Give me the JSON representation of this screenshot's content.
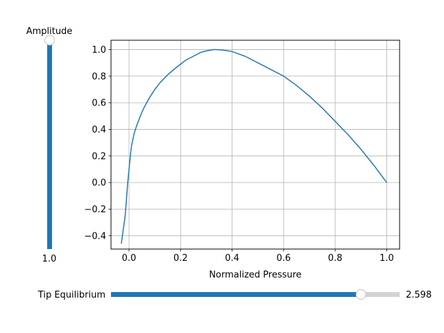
{
  "chart_data": {
    "type": "line",
    "xlabel": "Normalized Pressure",
    "ylabel": "",
    "title": "",
    "xlim": [
      -0.07,
      1.05
    ],
    "ylim": [
      -0.5,
      1.07
    ],
    "xticks": [
      0.0,
      0.2,
      0.4,
      0.6,
      0.8,
      1.0
    ],
    "xtick_labels": [
      "0.0",
      "0.2",
      "0.4",
      "0.6",
      "0.8",
      "1.0"
    ],
    "yticks": [
      -0.4,
      -0.2,
      0.0,
      0.2,
      0.4,
      0.6,
      0.8,
      1.0
    ],
    "ytick_labels": [
      "−0.4",
      "−0.2",
      "0.0",
      "0.2",
      "0.4",
      "0.6",
      "0.8",
      "1.0"
    ],
    "grid": true,
    "line_color": "#1f77b4",
    "series": [
      {
        "x": [
          -0.03,
          -0.015,
          -0.005,
          0.0,
          0.005,
          0.01,
          0.02,
          0.03,
          0.04,
          0.05,
          0.06,
          0.08,
          0.1,
          0.12,
          0.15,
          0.18,
          0.2,
          0.22,
          0.25,
          0.28,
          0.3,
          0.33,
          0.36,
          0.4,
          0.45,
          0.5,
          0.55,
          0.6,
          0.65,
          0.7,
          0.75,
          0.8,
          0.85,
          0.9,
          0.95,
          1.0
        ],
        "y": [
          -0.46,
          -0.25,
          0.0,
          0.1,
          0.2,
          0.28,
          0.37,
          0.43,
          0.48,
          0.53,
          0.57,
          0.64,
          0.7,
          0.75,
          0.81,
          0.86,
          0.89,
          0.92,
          0.95,
          0.98,
          0.99,
          1.0,
          0.997,
          0.985,
          0.95,
          0.9,
          0.85,
          0.8,
          0.73,
          0.65,
          0.56,
          0.46,
          0.36,
          0.25,
          0.13,
          0.0
        ]
      }
    ]
  },
  "sliders": {
    "amplitude": {
      "label": "Amplitude",
      "value_text": "1.0",
      "fraction": 1.0,
      "orientation": "vertical"
    },
    "tip_equilibrium": {
      "label": "Tip Equilibrium",
      "value_text": "2.598",
      "fraction": 0.866,
      "orientation": "horizontal"
    }
  },
  "colors": {
    "slider_fill": "#1f77b4",
    "slider_track": "#d3d3d3",
    "handle_fill": "#ffffff",
    "handle_edge": "#bfbfbf",
    "grid": "#b0b0b0"
  }
}
